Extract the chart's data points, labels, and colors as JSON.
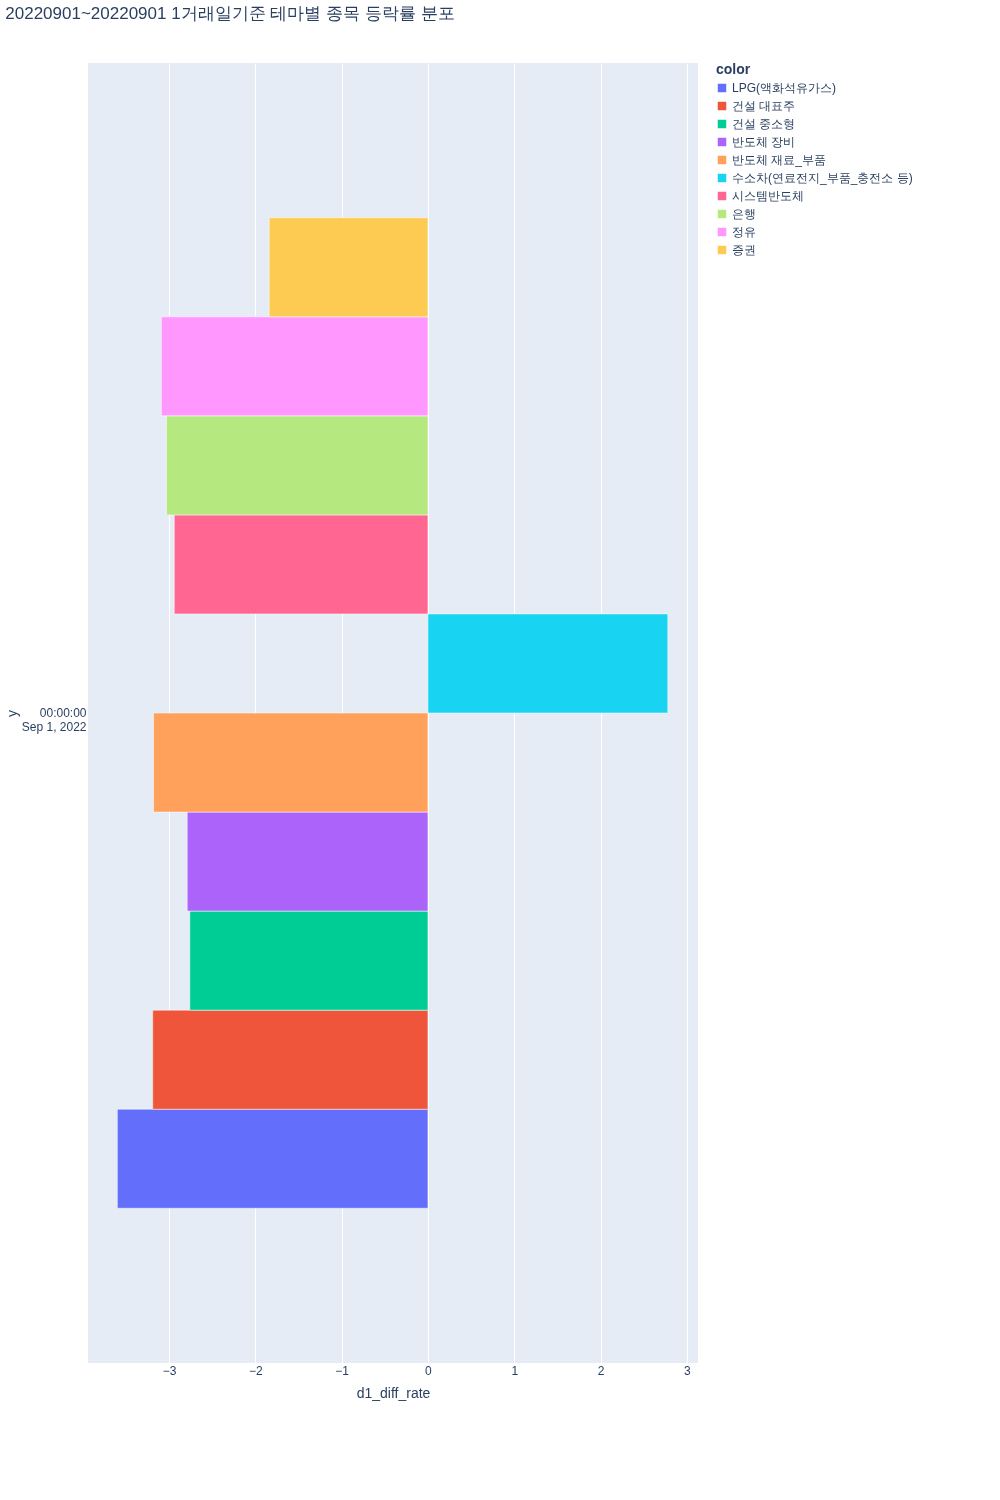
{
  "chart_data": {
    "type": "bar",
    "orientation": "horizontal",
    "title": "20220901~20220901 1거래일기준 테마별 종목 등락률 분포",
    "xlabel": "d1_diff_rate",
    "ylabel": "y",
    "legend_title": "color",
    "categories": [
      "00:00:00\nSep 1, 2022"
    ],
    "series": [
      {
        "name": "LPG(액화석유가스)",
        "color": "#636efa",
        "values": [
          -3.6
        ]
      },
      {
        "name": "건설 대표주",
        "color": "#ef553b",
        "values": [
          -3.19
        ]
      },
      {
        "name": "건설 중소형",
        "color": "#00cc96",
        "values": [
          -2.76
        ]
      },
      {
        "name": "반도체 장비",
        "color": "#ab63fa",
        "values": [
          -2.79
        ]
      },
      {
        "name": "반도체 재료_부품",
        "color": "#ffa15a",
        "values": [
          -3.18
        ]
      },
      {
        "name": "수소차(연료전지_부품_충전소 등)",
        "color": "#19d3f3",
        "values": [
          2.78
        ]
      },
      {
        "name": "시스템반도체",
        "color": "#ff6692",
        "values": [
          -2.94
        ]
      },
      {
        "name": "은행",
        "color": "#b6e880",
        "values": [
          -3.03
        ]
      },
      {
        "name": "정유",
        "color": "#ff97ff",
        "values": [
          -3.09
        ]
      },
      {
        "name": "증권",
        "color": "#fecb52",
        "values": [
          -1.84
        ]
      }
    ],
    "xlim": [
      -3.94,
      3.13
    ],
    "xticks": [
      {
        "value": -3,
        "label": "−3"
      },
      {
        "value": -2,
        "label": "−2"
      },
      {
        "value": -1,
        "label": "−1"
      },
      0,
      1,
      2,
      3
    ],
    "grid": "x",
    "legend": "top right"
  }
}
